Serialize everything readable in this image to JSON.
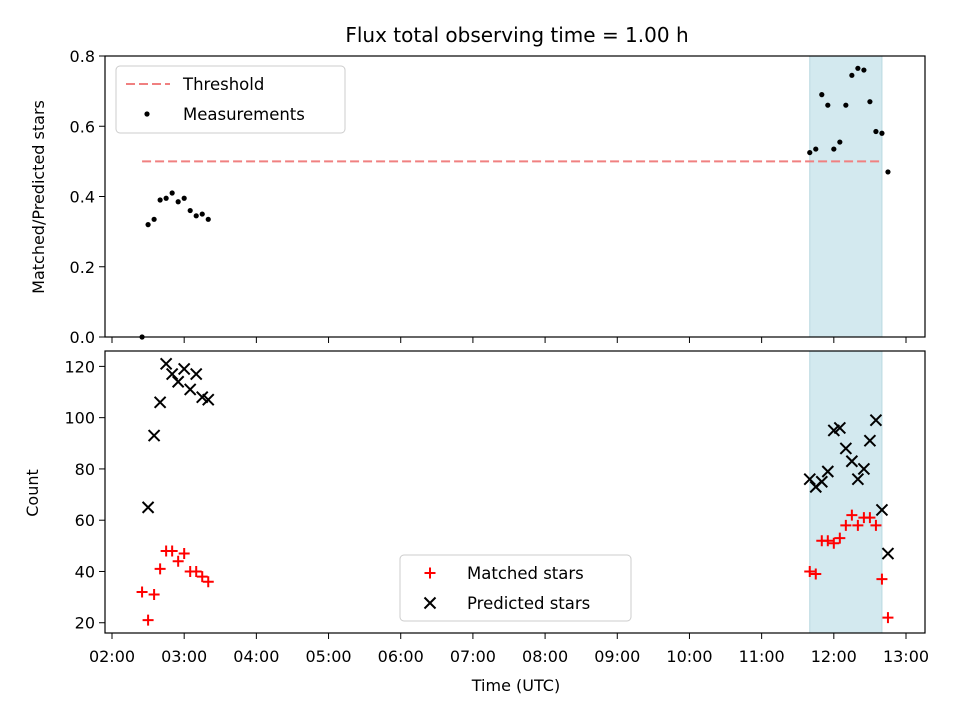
{
  "chart_data": [
    {
      "type": "scatter",
      "title": "Flux total observing time = 1.00 h",
      "ylabel": "Matched/Predicted stars",
      "xlabel": "",
      "xlim": [
        "02:00",
        "13:00"
      ],
      "ylim": [
        0,
        0.8
      ],
      "yticks": [
        "0.0",
        "0.2",
        "0.4",
        "0.6",
        "0.8"
      ],
      "highlight_span": [
        "11:40",
        "12:40"
      ],
      "highlight_color": "#d3e9ef",
      "threshold": {
        "name": "Threshold",
        "value": 0.5,
        "x_range": [
          "02:25",
          "12:40"
        ],
        "color": "#f08080"
      },
      "series": [
        {
          "name": "Measurements",
          "color": "#000000",
          "marker": "dot",
          "x": [
            "02:25",
            "02:30",
            "02:35",
            "02:40",
            "02:45",
            "02:50",
            "02:55",
            "03:00",
            "03:05",
            "03:10",
            "03:15",
            "03:20",
            "11:40",
            "11:45",
            "11:50",
            "11:55",
            "12:00",
            "12:05",
            "12:10",
            "12:15",
            "12:20",
            "12:25",
            "12:30",
            "12:35",
            "12:40",
            "12:45"
          ],
          "y": [
            0.0,
            0.32,
            0.335,
            0.39,
            0.395,
            0.41,
            0.385,
            0.395,
            0.36,
            0.345,
            0.35,
            0.335,
            0.525,
            0.535,
            0.69,
            0.66,
            0.535,
            0.555,
            0.66,
            0.745,
            0.765,
            0.76,
            0.67,
            0.585,
            0.58,
            0.47
          ]
        }
      ]
    },
    {
      "type": "scatter",
      "title": "",
      "ylabel": "Count",
      "xlabel": "Time (UTC)",
      "xlim": [
        "02:00",
        "13:00"
      ],
      "ylim": [
        16,
        126
      ],
      "yticks": [
        "20",
        "40",
        "60",
        "80",
        "100",
        "120"
      ],
      "xticks": [
        "02:00",
        "03:00",
        "04:00",
        "05:00",
        "06:00",
        "07:00",
        "08:00",
        "09:00",
        "10:00",
        "11:00",
        "12:00",
        "13:00"
      ],
      "highlight_span": [
        "11:40",
        "12:40"
      ],
      "legend_position": "lower-center",
      "series": [
        {
          "name": "Matched stars",
          "color": "#ff0000",
          "marker": "plus",
          "x": [
            "02:25",
            "02:30",
            "02:35",
            "02:40",
            "02:45",
            "02:50",
            "02:55",
            "03:00",
            "03:05",
            "03:10",
            "03:15",
            "03:20",
            "11:40",
            "11:45",
            "11:50",
            "11:55",
            "12:00",
            "12:05",
            "12:10",
            "12:15",
            "12:20",
            "12:25",
            "12:30",
            "12:35",
            "12:40",
            "12:45"
          ],
          "y": [
            32,
            21,
            31,
            41,
            48,
            48,
            44,
            47,
            40,
            40,
            38,
            36,
            40,
            39,
            52,
            52,
            51,
            53,
            58,
            62,
            58,
            61,
            61,
            58,
            37,
            22
          ]
        },
        {
          "name": "Predicted stars",
          "color": "#000000",
          "marker": "x",
          "x": [
            "02:30",
            "02:35",
            "02:40",
            "02:45",
            "02:50",
            "02:55",
            "03:00",
            "03:05",
            "03:10",
            "03:15",
            "03:20",
            "11:40",
            "11:45",
            "11:50",
            "11:55",
            "12:00",
            "12:05",
            "12:10",
            "12:15",
            "12:20",
            "12:25",
            "12:30",
            "12:35",
            "12:40",
            "12:45"
          ],
          "y": [
            65,
            93,
            106,
            121,
            117,
            114,
            119,
            111,
            117,
            108,
            107,
            76,
            73,
            75,
            79,
            95,
            96,
            88,
            83,
            76,
            80,
            91,
            99,
            64,
            47
          ]
        }
      ]
    }
  ]
}
